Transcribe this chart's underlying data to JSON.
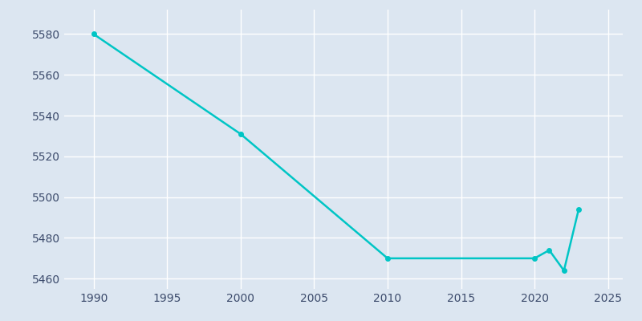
{
  "years": [
    1990,
    2000,
    2010,
    2020,
    2021,
    2022,
    2023
  ],
  "population": [
    5580,
    5531,
    5470,
    5470,
    5474,
    5464,
    5494
  ],
  "line_color": "#00C5C5",
  "background_color": "#dce6f1",
  "grid_color": "#ffffff",
  "xlim": [
    1988,
    2026
  ],
  "ylim": [
    5455,
    5592
  ],
  "xticks": [
    1990,
    1995,
    2000,
    2005,
    2010,
    2015,
    2020,
    2025
  ],
  "yticks": [
    5460,
    5480,
    5500,
    5520,
    5540,
    5560,
    5580
  ],
  "tick_color": "#3b4a6b",
  "linewidth": 1.8,
  "marker_size": 4,
  "marker_color": "#00C5C5"
}
